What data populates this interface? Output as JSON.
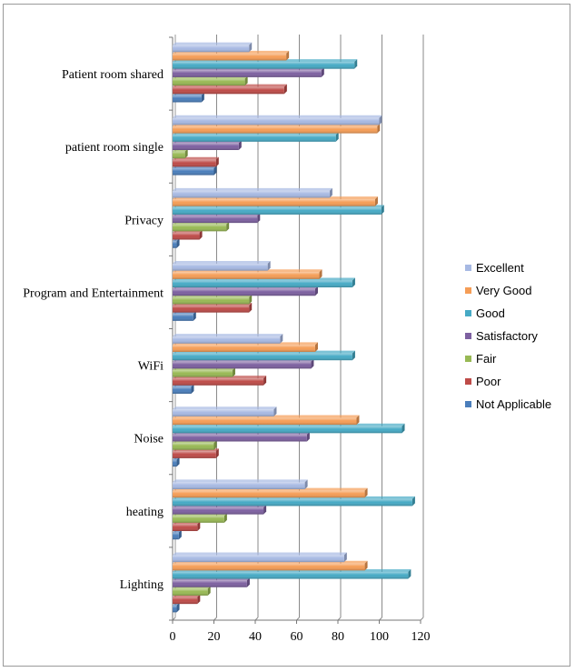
{
  "chart_data": {
    "type": "bar",
    "orientation": "horizontal",
    "categories": [
      "Lighting",
      "heating",
      "Noise",
      "WiFi",
      "Program and Entertainment",
      "Privacy",
      "patient room single",
      "Patient room shared"
    ],
    "series": [
      {
        "name": "Not Applicable",
        "color": "#4a7ebb",
        "values": [
          2,
          3,
          2,
          9,
          10,
          2,
          20,
          14
        ]
      },
      {
        "name": "Poor",
        "color": "#be4b48",
        "values": [
          12,
          12,
          21,
          44,
          37,
          13,
          21,
          54
        ]
      },
      {
        "name": "Fair",
        "color": "#98b954",
        "values": [
          17,
          25,
          20,
          29,
          37,
          26,
          6,
          35
        ]
      },
      {
        "name": "Satisfactory",
        "color": "#7d60a0",
        "values": [
          36,
          44,
          65,
          67,
          69,
          41,
          32,
          72
        ]
      },
      {
        "name": "Good",
        "color": "#46aac5",
        "values": [
          114,
          116,
          111,
          87,
          87,
          101,
          79,
          88
        ]
      },
      {
        "name": "Very Good",
        "color": "#f59d56",
        "values": [
          93,
          93,
          89,
          69,
          71,
          98,
          99,
          55
        ]
      },
      {
        "name": "Excellent",
        "color": "#a7b9e3",
        "values": [
          83,
          64,
          49,
          52,
          46,
          76,
          100,
          37
        ]
      }
    ],
    "xlim": [
      0,
      120
    ],
    "xticks": [
      "0",
      "20",
      "40",
      "60",
      "80",
      "100",
      "120"
    ],
    "grid": true,
    "legend_position": "right",
    "legend_order": [
      "Excellent",
      "Very Good",
      "Good",
      "Satisfactory",
      "Fair",
      "Poor",
      "Not Applicable"
    ]
  }
}
